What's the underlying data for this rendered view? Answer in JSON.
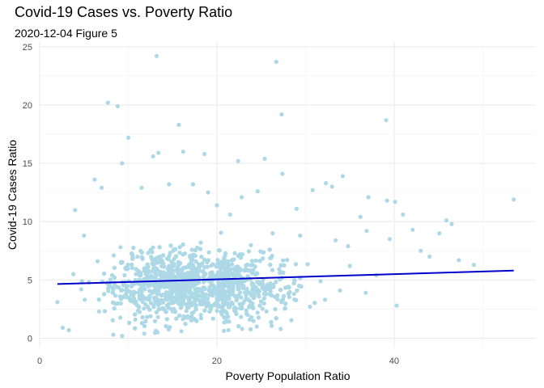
{
  "chart_data": {
    "type": "scatter",
    "title": "Covid-19 Cases vs. Poverty Ratio",
    "subtitle": "2020-12-04 Figure 5",
    "xlabel": "Poverty Population Ratio",
    "ylabel": "Covid-19 Cases Ratio",
    "xlim": [
      0,
      56
    ],
    "ylim": [
      -0.8,
      25.4
    ],
    "x_ticks": [
      0,
      20,
      40
    ],
    "y_ticks": [
      0,
      5,
      10,
      15,
      20,
      25
    ],
    "grid": true,
    "point_color": "#add8e6",
    "line_color": "#0000cd",
    "trend_line": {
      "x": [
        2,
        53.5
      ],
      "y": [
        4.65,
        5.8
      ]
    },
    "points": [
      [
        13.2,
        24.2
      ],
      [
        26.7,
        23.7
      ],
      [
        7.7,
        20.2
      ],
      [
        8.8,
        19.9
      ],
      [
        27.3,
        19.2
      ],
      [
        39.1,
        18.7
      ],
      [
        15.7,
        18.3
      ],
      [
        10.0,
        17.2
      ],
      [
        13.4,
        15.9
      ],
      [
        12.8,
        15.6
      ],
      [
        16.2,
        16.0
      ],
      [
        18.6,
        15.8
      ],
      [
        9.3,
        15.0
      ],
      [
        22.4,
        15.2
      ],
      [
        25.4,
        15.4
      ],
      [
        34.2,
        13.9
      ],
      [
        27.4,
        14.1
      ],
      [
        32.3,
        13.3
      ],
      [
        53.5,
        11.9
      ],
      [
        45.9,
        10.1
      ],
      [
        46.5,
        9.8
      ],
      [
        37.1,
        12.1
      ],
      [
        39.2,
        11.8
      ],
      [
        40.1,
        11.7
      ],
      [
        36.2,
        10.4
      ],
      [
        41.0,
        10.6
      ],
      [
        42.1,
        9.3
      ],
      [
        45.1,
        9.0
      ],
      [
        39.5,
        8.5
      ],
      [
        44.0,
        7.0
      ],
      [
        49.0,
        6.3
      ],
      [
        40.3,
        2.8
      ],
      [
        27.2,
        0.8
      ],
      [
        2.0,
        3.1
      ],
      [
        2.6,
        0.9
      ],
      [
        3.3,
        0.7
      ],
      [
        8.3,
        0.3
      ],
      [
        9.3,
        0.2
      ],
      [
        11.8,
        0.4
      ],
      [
        13.3,
        0.5
      ],
      [
        16.0,
        0.6
      ],
      [
        21.3,
        0.7
      ],
      [
        24.5,
        1.0
      ],
      [
        4.0,
        11.0
      ],
      [
        5.0,
        8.8
      ],
      [
        3.8,
        5.5
      ],
      [
        24.6,
        12.6
      ],
      [
        29.0,
        11.1
      ],
      [
        30.8,
        12.7
      ],
      [
        33.0,
        13.0
      ],
      [
        35.0,
        6.2
      ],
      [
        38.0,
        5.4
      ],
      [
        31.7,
        4.9
      ],
      [
        28.7,
        3.8
      ],
      [
        30.5,
        2.7
      ],
      [
        23.7,
        1.6
      ],
      [
        47.3,
        6.7
      ],
      [
        43.0,
        7.5
      ],
      [
        36.9,
        9.2
      ],
      [
        34.8,
        7.9
      ],
      [
        33.4,
        8.4
      ],
      [
        29.4,
        8.8
      ],
      [
        26.3,
        9.0
      ],
      [
        21.5,
        10.6
      ],
      [
        20.0,
        11.4
      ],
      [
        14.6,
        13.2
      ],
      [
        11.5,
        12.9
      ],
      [
        7.0,
        12.9
      ],
      [
        6.2,
        13.6
      ],
      [
        17.3,
        13.2
      ],
      [
        19.0,
        12.5
      ],
      [
        22.8,
        12.1
      ],
      [
        36.8,
        3.9
      ],
      [
        33.9,
        4.1
      ],
      [
        32.2,
        3.3
      ],
      [
        25.6,
        2.3
      ],
      [
        18.2,
        2.0
      ],
      [
        10.8,
        1.6
      ],
      [
        6.7,
        2.3
      ],
      [
        4.7,
        4.2
      ]
    ]
  }
}
